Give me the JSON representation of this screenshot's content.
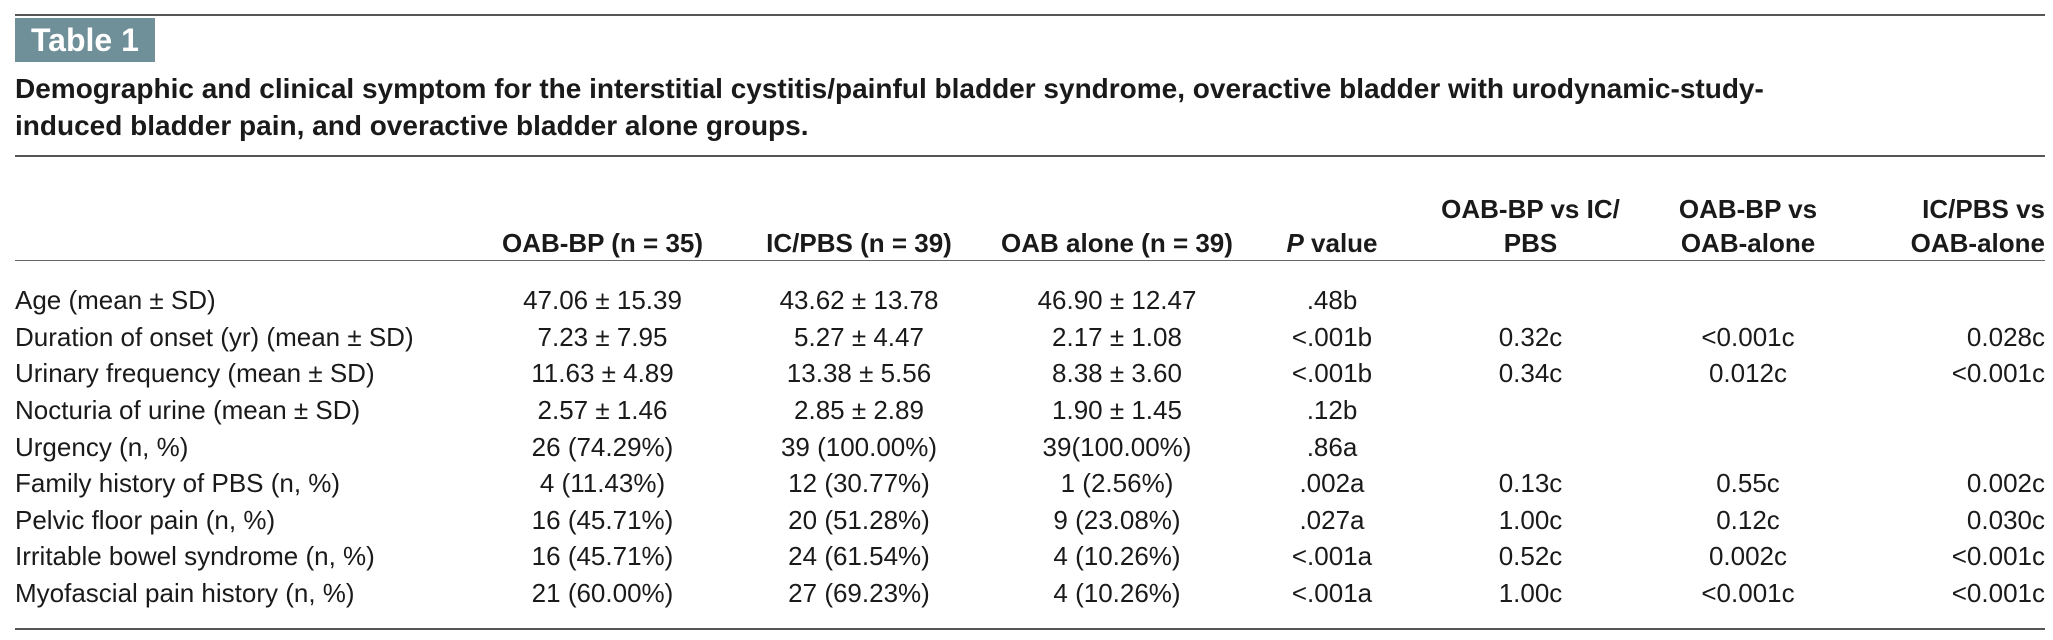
{
  "badge": "Table 1",
  "caption_line1": "Demographic and clinical symptom for the interstitial cystitis/painful bladder syndrome, overactive bladder with urodynamic-study-",
  "caption_line2": "induced bladder pain, and overactive bladder alone groups.",
  "columns": {
    "g1": "OAB-BP (n = 35)",
    "g2": "IC/PBS (n = 39)",
    "g3": "OAB alone (n = 39)",
    "p_italic": "P",
    "p_rest": " value",
    "v1_line1": "OAB-BP vs IC/",
    "v1_line2": "PBS",
    "v2_line1": "OAB-BP vs",
    "v2_line2": "OAB-alone",
    "v3_line1": "IC/PBS vs",
    "v3_line2": "OAB-alone"
  },
  "rows": [
    {
      "label": "Age (mean ± SD)",
      "g1": "47.06 ± 15.39",
      "g2": "43.62 ± 13.78",
      "g3": "46.90 ± 12.47",
      "p": ".48b",
      "v1": "",
      "v2": "",
      "v3": ""
    },
    {
      "label": "Duration of onset (yr) (mean ± SD)",
      "g1": "7.23 ± 7.95",
      "g2": "5.27 ± 4.47",
      "g3": "2.17 ± 1.08",
      "p": "<.001b",
      "v1": "0.32c",
      "v2": "<0.001c",
      "v3": "0.028c"
    },
    {
      "label": "Urinary frequency (mean ± SD)",
      "g1": "11.63 ± 4.89",
      "g2": "13.38 ± 5.56",
      "g3": "8.38 ± 3.60",
      "p": "<.001b",
      "v1": "0.34c",
      "v2": "0.012c",
      "v3": "<0.001c"
    },
    {
      "label": "Nocturia of urine (mean ± SD)",
      "g1": "2.57 ± 1.46",
      "g2": "2.85 ± 2.89",
      "g3": "1.90 ± 1.45",
      "p": ".12b",
      "v1": "",
      "v2": "",
      "v3": ""
    },
    {
      "label": "Urgency (n, %)",
      "g1": "26 (74.29%)",
      "g2": "39 (100.00%)",
      "g3": "39(100.00%)",
      "p": ".86a",
      "v1": "",
      "v2": "",
      "v3": ""
    },
    {
      "label": "Family history of PBS (n, %)",
      "g1": "4 (11.43%)",
      "g2": "12 (30.77%)",
      "g3": "1 (2.56%)",
      "p": ".002a",
      "v1": "0.13c",
      "v2": "0.55c",
      "v3": "0.002c"
    },
    {
      "label": "Pelvic floor pain (n, %)",
      "g1": "16 (45.71%)",
      "g2": "20 (51.28%)",
      "g3": "9 (23.08%)",
      "p": ".027a",
      "v1": "1.00c",
      "v2": "0.12c",
      "v3": "0.030c"
    },
    {
      "label": "Irritable bowel syndrome (n, %)",
      "g1": "16 (45.71%)",
      "g2": "24 (61.54%)",
      "g3": "4 (10.26%)",
      "p": "<.001a",
      "v1": "0.52c",
      "v2": "0.002c",
      "v3": "<0.001c"
    },
    {
      "label": "Myofascial pain history (n, %)",
      "g1": "21 (60.00%)",
      "g2": "27 (69.23%)",
      "g3": "4 (10.26%)",
      "p": "<.001a",
      "v1": "1.00c",
      "v2": "<0.001c",
      "v3": "<0.001c"
    }
  ]
}
